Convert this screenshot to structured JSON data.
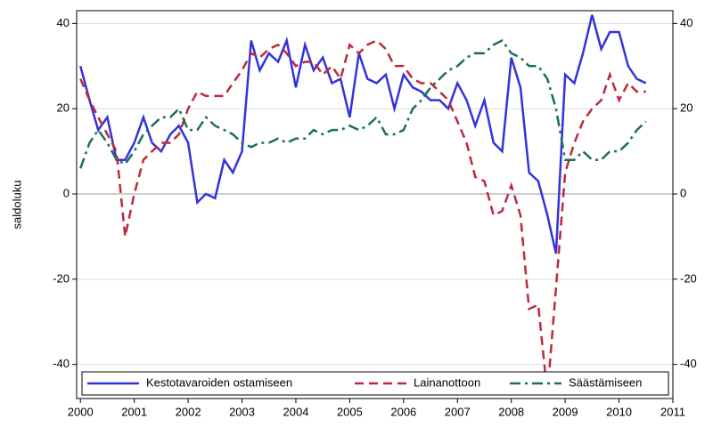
{
  "chart_data": {
    "type": "line",
    "ylabel": "saldoluku",
    "x": [
      2000,
      2000.17,
      2000.33,
      2000.5,
      2000.67,
      2000.83,
      2001,
      2001.17,
      2001.33,
      2001.5,
      2001.67,
      2001.83,
      2002,
      2002.17,
      2002.33,
      2002.5,
      2002.67,
      2002.83,
      2003,
      2003.17,
      2003.33,
      2003.5,
      2003.67,
      2003.83,
      2004,
      2004.17,
      2004.33,
      2004.5,
      2004.67,
      2004.83,
      2005,
      2005.17,
      2005.33,
      2005.5,
      2005.67,
      2005.83,
      2006,
      2006.17,
      2006.33,
      2006.5,
      2006.67,
      2006.83,
      2007,
      2007.17,
      2007.33,
      2007.5,
      2007.67,
      2007.83,
      2008,
      2008.17,
      2008.33,
      2008.5,
      2008.67,
      2008.83,
      2009,
      2009.17,
      2009.33,
      2009.5,
      2009.67,
      2009.83,
      2010,
      2010.17,
      2010.33,
      2010.5
    ],
    "series": [
      {
        "name": "Kestotavaroiden ostamiseen",
        "color": "#3333dd",
        "style": "solid",
        "values": [
          30,
          22,
          15,
          18,
          8,
          8,
          12,
          18,
          12,
          10,
          14,
          16,
          12,
          -2,
          0,
          -1,
          8,
          5,
          10,
          36,
          29,
          33,
          31,
          36,
          25,
          35,
          29,
          32,
          26,
          27,
          18,
          33,
          27,
          26,
          28,
          20,
          28,
          25,
          24,
          22,
          22,
          20,
          26,
          22,
          16,
          22,
          12,
          10,
          32,
          25,
          5,
          3,
          -5,
          -14,
          28,
          26,
          33,
          42,
          34,
          38,
          38,
          30,
          27,
          26
        ]
      },
      {
        "name": "Lainanottoon",
        "color": "#c0283c",
        "style": "dashed",
        "values": [
          27,
          22,
          18,
          14,
          10,
          -10,
          0,
          8,
          10,
          12,
          12,
          14,
          20,
          24,
          23,
          23,
          23,
          26,
          29,
          33,
          32,
          34,
          35,
          33,
          30,
          31,
          31,
          28,
          30,
          27,
          35,
          33,
          35,
          36,
          34,
          30,
          30,
          27,
          26,
          26,
          24,
          22,
          17,
          12,
          4,
          3,
          -5,
          -4,
          2,
          -5,
          -27,
          -26,
          -47,
          -22,
          5,
          12,
          17,
          20,
          22,
          28,
          22,
          26,
          24,
          24
        ]
      },
      {
        "name": "Säästämiseen",
        "color": "#1a6e5e",
        "style": "dashdot",
        "values": [
          6,
          12,
          15,
          12,
          8,
          7,
          10,
          14,
          16,
          18,
          18,
          20,
          15,
          15,
          18,
          16,
          15,
          14,
          12,
          11,
          12,
          12,
          13,
          12,
          13,
          13,
          15,
          14,
          15,
          15,
          16,
          15,
          16,
          18,
          14,
          14,
          15,
          20,
          22,
          25,
          27,
          29,
          30,
          32,
          33,
          33,
          35,
          36,
          33,
          32,
          30,
          30,
          27,
          20,
          8,
          8,
          10,
          8,
          8,
          10,
          10,
          12,
          15,
          17
        ]
      }
    ],
    "xlim": [
      1999.93,
      2011
    ],
    "xticks": [
      2000,
      2001,
      2002,
      2003,
      2004,
      2005,
      2006,
      2007,
      2008,
      2009,
      2010,
      2011
    ],
    "ylim": [
      -48,
      43
    ],
    "yticks": [
      40,
      20,
      0,
      -20,
      -40
    ],
    "grid": true,
    "legend": "bottom"
  }
}
